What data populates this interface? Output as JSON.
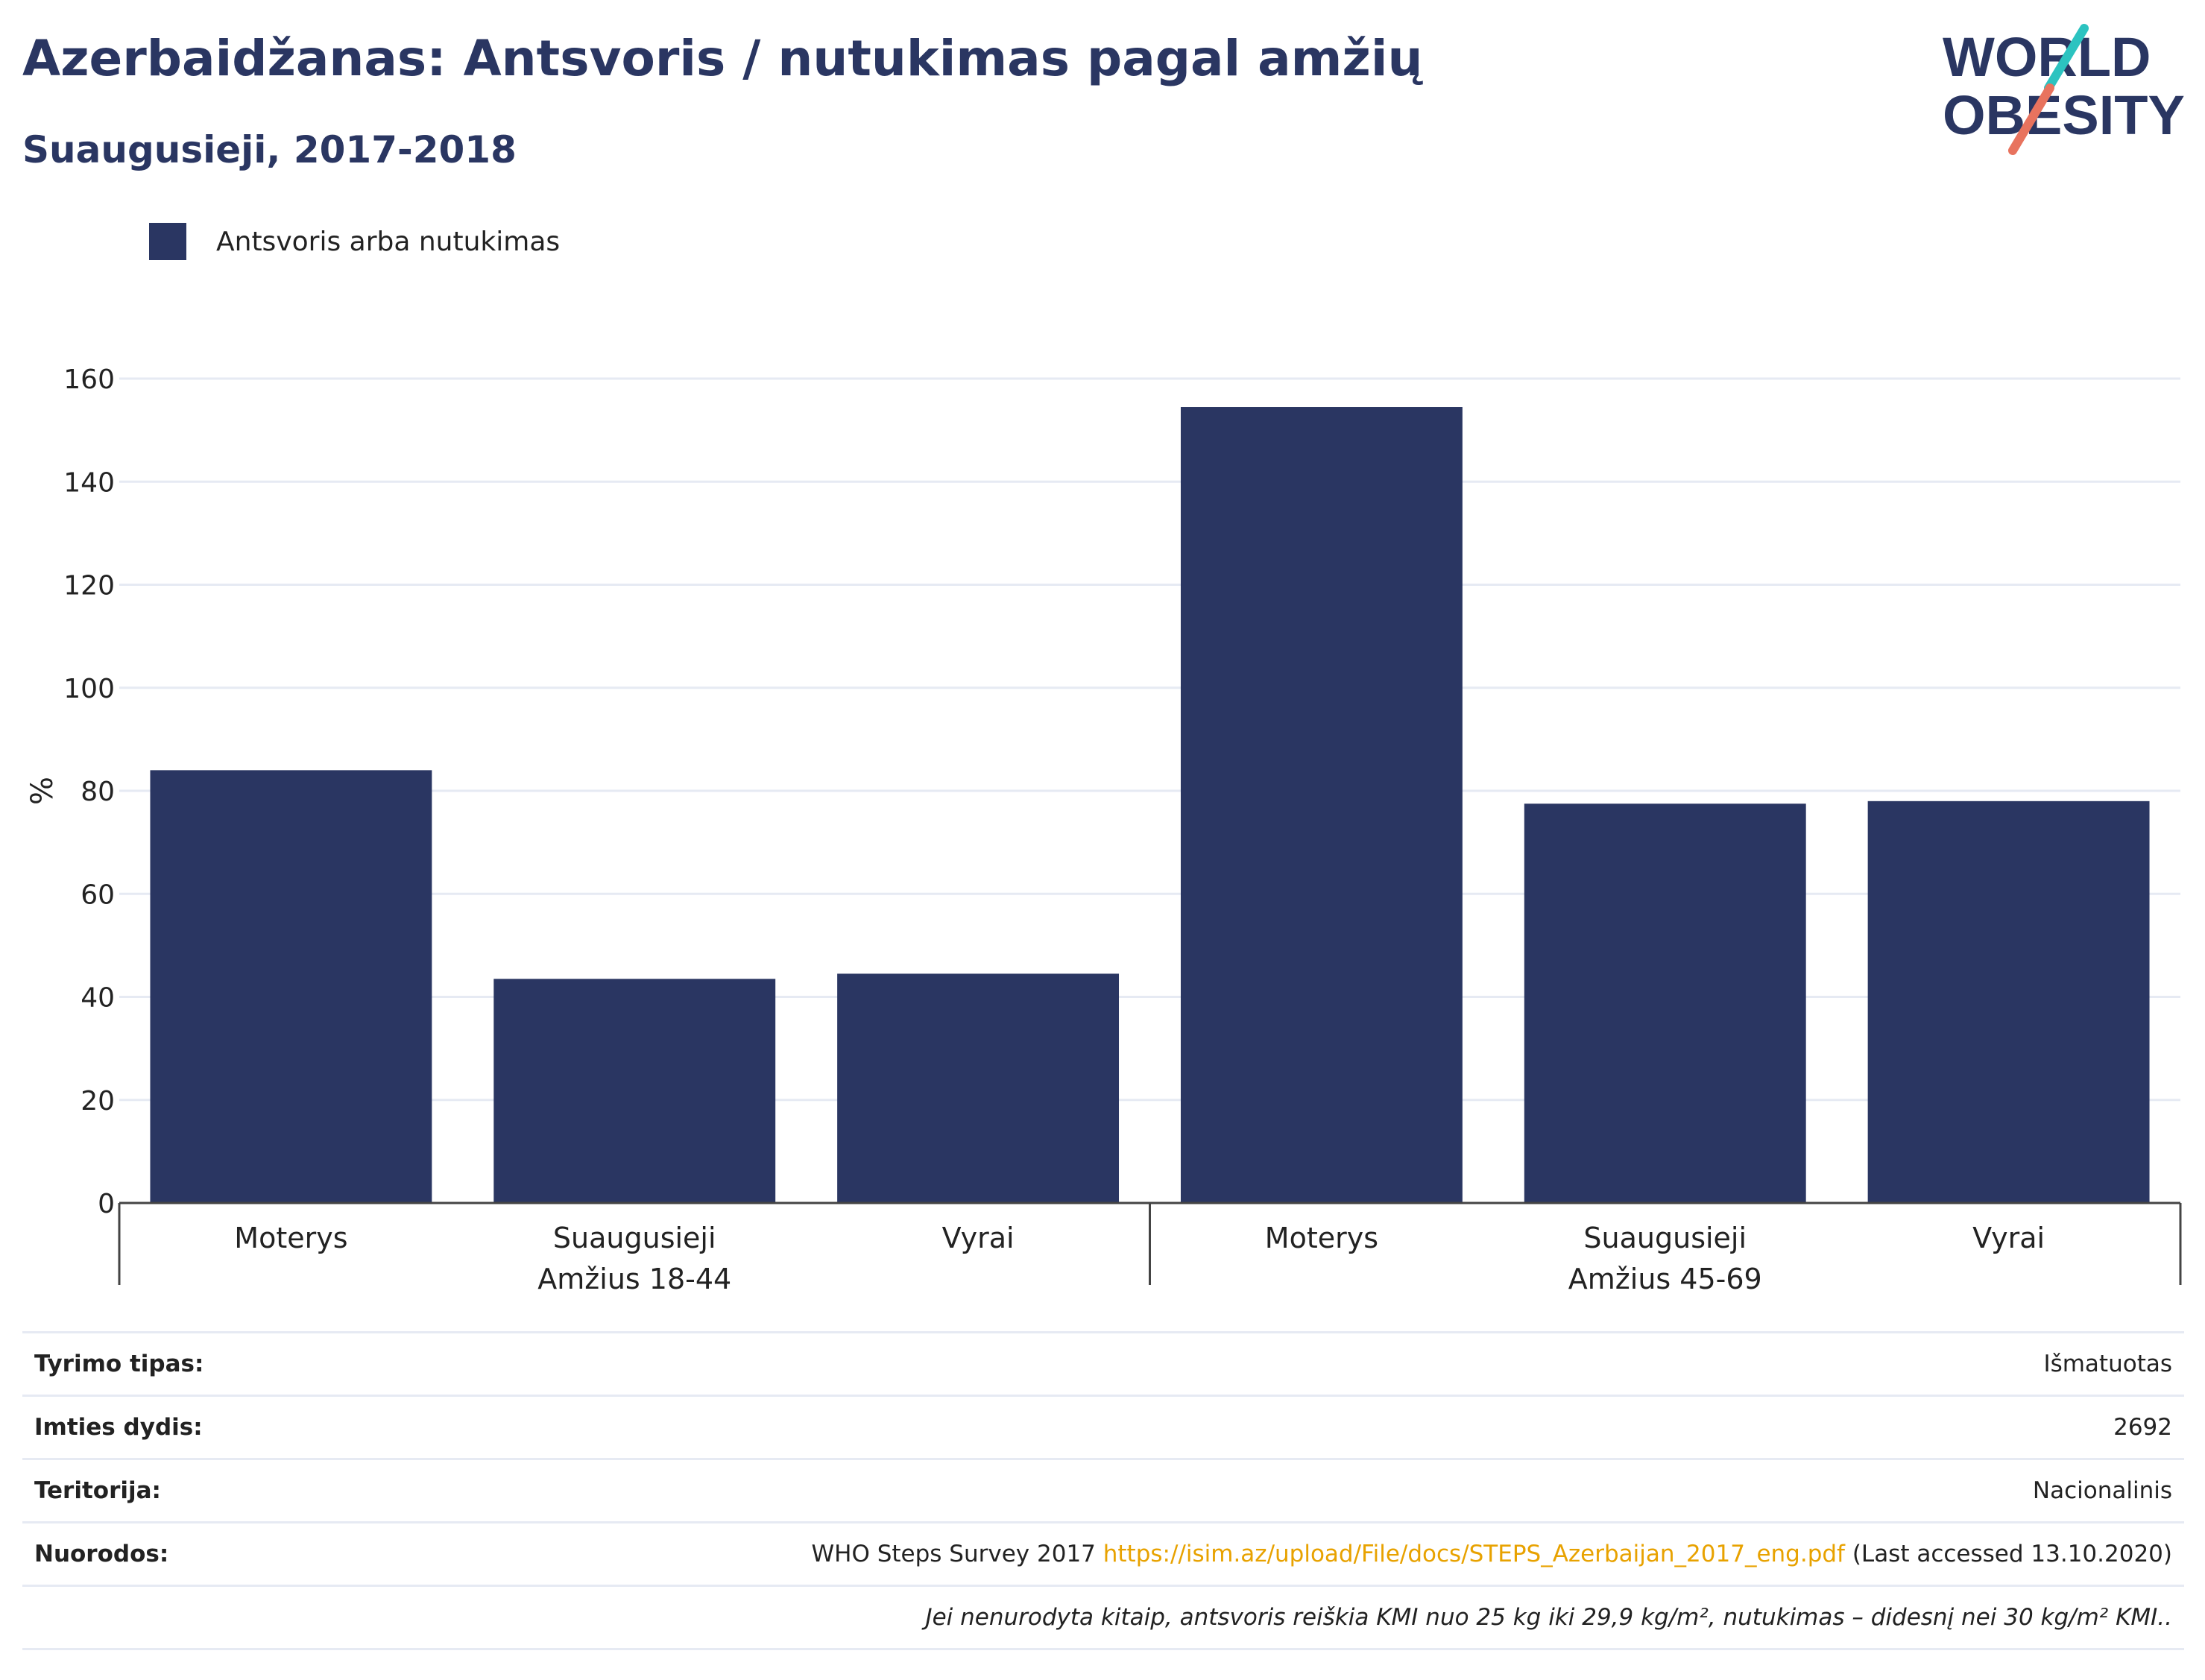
{
  "header": {
    "title": "Azerbaidžanas: Antsvoris / nutukimas pagal amžių",
    "subtitle": "Suaugusieji, 2017-2018"
  },
  "logo": {
    "line1": "WORLD",
    "line2": "OBESITY",
    "accent_teal": "#2cc3c0",
    "accent_coral": "#e8735e"
  },
  "legend": {
    "label": "Antsvoris arba nutukimas",
    "color": "#2a3662"
  },
  "chart_data": {
    "type": "bar",
    "ylabel": "%",
    "ylim": [
      0,
      160
    ],
    "yticks": [
      0,
      20,
      40,
      60,
      80,
      100,
      120,
      140,
      160
    ],
    "grid": true,
    "legend_position": "top-left",
    "bar_color": "#2a3662",
    "groups": [
      {
        "label": "Amžius 18-44",
        "categories": [
          "Moterys",
          "Suaugusieji",
          "Vyrai"
        ]
      },
      {
        "label": "Amžius 45-69",
        "categories": [
          "Moterys",
          "Suaugusieji",
          "Vyrai"
        ]
      }
    ],
    "categories": [
      "Moterys",
      "Suaugusieji",
      "Vyrai",
      "Moterys",
      "Suaugusieji",
      "Vyrai"
    ],
    "series": [
      {
        "name": "Antsvoris arba nutukimas",
        "values": [
          84.0,
          43.5,
          44.5,
          154.5,
          77.5,
          78.0
        ]
      }
    ]
  },
  "info": {
    "rows": [
      {
        "label": "Tyrimo tipas:",
        "value": "Išmatuotas"
      },
      {
        "label": "Imties dydis:",
        "value": "2692"
      },
      {
        "label": "Teritorija:",
        "value": "Nacionalinis"
      }
    ],
    "references": {
      "label": "Nuorodos:",
      "prefix": "WHO Steps Survey 2017 ",
      "link": "https://isim.az/upload/File/docs/STEPS_Azerbaijan_2017_eng.pdf",
      "suffix": " (Last accessed 13.10.2020)"
    },
    "note": "Jei nenurodyta kitaip, antsvoris reiškia KMI nuo 25 kg iki 29,9 kg/m², nutukimas – didesnį nei 30 kg/m² KMI.."
  }
}
